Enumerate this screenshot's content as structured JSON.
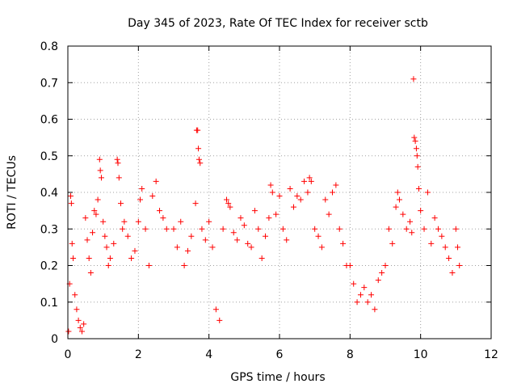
{
  "chart_data": {
    "type": "scatter",
    "title": "Day 345 of 2023, Rate Of TEC Index for receiver sctb",
    "xlabel": "GPS time / hours",
    "ylabel": "ROTI / TECUs",
    "xlim": [
      0,
      12
    ],
    "ylim": [
      0,
      0.8
    ],
    "xticks": [
      0,
      2,
      4,
      6,
      8,
      10,
      12
    ],
    "yticks": [
      0,
      0.1,
      0.2,
      0.3,
      0.4,
      0.5,
      0.6,
      0.7,
      0.8
    ],
    "x_tick_labels": [
      "0",
      "2",
      "4",
      "6",
      "8",
      "10",
      "12"
    ],
    "y_tick_labels": [
      "0",
      "0.1",
      "0.2",
      "0.3",
      "0.4",
      "0.5",
      "0.6",
      "0.7",
      "0.8"
    ],
    "grid": true,
    "marker": "+",
    "series": [
      {
        "name": "ROTI",
        "color": "#ff0000",
        "points": [
          [
            0.02,
            0.02
          ],
          [
            0.05,
            0.15
          ],
          [
            0.08,
            0.39
          ],
          [
            0.1,
            0.37
          ],
          [
            0.12,
            0.26
          ],
          [
            0.15,
            0.22
          ],
          [
            0.2,
            0.12
          ],
          [
            0.25,
            0.08
          ],
          [
            0.3,
            0.05
          ],
          [
            0.35,
            0.03
          ],
          [
            0.4,
            0.02
          ],
          [
            0.45,
            0.04
          ],
          [
            0.5,
            0.33
          ],
          [
            0.55,
            0.27
          ],
          [
            0.6,
            0.22
          ],
          [
            0.65,
            0.18
          ],
          [
            0.7,
            0.29
          ],
          [
            0.75,
            0.35
          ],
          [
            0.8,
            0.34
          ],
          [
            0.85,
            0.38
          ],
          [
            0.9,
            0.49
          ],
          [
            0.92,
            0.46
          ],
          [
            0.95,
            0.44
          ],
          [
            1.0,
            0.32
          ],
          [
            1.05,
            0.28
          ],
          [
            1.1,
            0.25
          ],
          [
            1.15,
            0.2
          ],
          [
            1.2,
            0.22
          ],
          [
            1.3,
            0.26
          ],
          [
            1.4,
            0.49
          ],
          [
            1.42,
            0.48
          ],
          [
            1.45,
            0.44
          ],
          [
            1.5,
            0.37
          ],
          [
            1.55,
            0.3
          ],
          [
            1.6,
            0.32
          ],
          [
            1.7,
            0.28
          ],
          [
            1.8,
            0.22
          ],
          [
            1.9,
            0.24
          ],
          [
            2.0,
            0.32
          ],
          [
            2.05,
            0.38
          ],
          [
            2.1,
            0.41
          ],
          [
            2.2,
            0.3
          ],
          [
            2.3,
            0.2
          ],
          [
            2.4,
            0.39
          ],
          [
            2.5,
            0.43
          ],
          [
            2.6,
            0.35
          ],
          [
            2.7,
            0.33
          ],
          [
            2.8,
            0.3
          ],
          [
            3.0,
            0.3
          ],
          [
            3.1,
            0.25
          ],
          [
            3.2,
            0.32
          ],
          [
            3.3,
            0.2
          ],
          [
            3.4,
            0.24
          ],
          [
            3.5,
            0.28
          ],
          [
            3.62,
            0.37
          ],
          [
            3.65,
            0.57
          ],
          [
            3.68,
            0.57
          ],
          [
            3.7,
            0.52
          ],
          [
            3.72,
            0.49
          ],
          [
            3.75,
            0.48
          ],
          [
            3.8,
            0.3
          ],
          [
            3.9,
            0.27
          ],
          [
            4.0,
            0.32
          ],
          [
            4.1,
            0.25
          ],
          [
            4.2,
            0.08
          ],
          [
            4.3,
            0.05
          ],
          [
            4.4,
            0.3
          ],
          [
            4.5,
            0.38
          ],
          [
            4.55,
            0.37
          ],
          [
            4.6,
            0.36
          ],
          [
            4.7,
            0.29
          ],
          [
            4.8,
            0.27
          ],
          [
            4.9,
            0.33
          ],
          [
            5.0,
            0.31
          ],
          [
            5.1,
            0.26
          ],
          [
            5.2,
            0.25
          ],
          [
            5.3,
            0.35
          ],
          [
            5.4,
            0.3
          ],
          [
            5.5,
            0.22
          ],
          [
            5.6,
            0.28
          ],
          [
            5.7,
            0.33
          ],
          [
            5.75,
            0.42
          ],
          [
            5.8,
            0.4
          ],
          [
            5.9,
            0.34
          ],
          [
            6.0,
            0.39
          ],
          [
            6.1,
            0.3
          ],
          [
            6.2,
            0.27
          ],
          [
            6.3,
            0.41
          ],
          [
            6.4,
            0.36
          ],
          [
            6.5,
            0.39
          ],
          [
            6.6,
            0.38
          ],
          [
            6.7,
            0.43
          ],
          [
            6.8,
            0.4
          ],
          [
            6.85,
            0.44
          ],
          [
            6.9,
            0.43
          ],
          [
            7.0,
            0.3
          ],
          [
            7.1,
            0.28
          ],
          [
            7.2,
            0.25
          ],
          [
            7.3,
            0.38
          ],
          [
            7.4,
            0.34
          ],
          [
            7.5,
            0.4
          ],
          [
            7.6,
            0.42
          ],
          [
            7.7,
            0.3
          ],
          [
            7.8,
            0.26
          ],
          [
            7.9,
            0.2
          ],
          [
            8.0,
            0.2
          ],
          [
            8.1,
            0.15
          ],
          [
            8.2,
            0.1
          ],
          [
            8.3,
            0.12
          ],
          [
            8.4,
            0.14
          ],
          [
            8.5,
            0.1
          ],
          [
            8.6,
            0.12
          ],
          [
            8.7,
            0.08
          ],
          [
            8.8,
            0.16
          ],
          [
            8.9,
            0.18
          ],
          [
            9.0,
            0.2
          ],
          [
            9.1,
            0.3
          ],
          [
            9.2,
            0.26
          ],
          [
            9.3,
            0.36
          ],
          [
            9.35,
            0.4
          ],
          [
            9.4,
            0.38
          ],
          [
            9.5,
            0.34
          ],
          [
            9.6,
            0.3
          ],
          [
            9.7,
            0.32
          ],
          [
            9.75,
            0.29
          ],
          [
            9.8,
            0.71
          ],
          [
            9.82,
            0.55
          ],
          [
            9.85,
            0.54
          ],
          [
            9.88,
            0.52
          ],
          [
            9.9,
            0.5
          ],
          [
            9.92,
            0.47
          ],
          [
            9.95,
            0.41
          ],
          [
            10.0,
            0.35
          ],
          [
            10.1,
            0.3
          ],
          [
            10.2,
            0.4
          ],
          [
            10.3,
            0.26
          ],
          [
            10.4,
            0.33
          ],
          [
            10.5,
            0.3
          ],
          [
            10.6,
            0.28
          ],
          [
            10.7,
            0.25
          ],
          [
            10.8,
            0.22
          ],
          [
            10.9,
            0.18
          ],
          [
            11.0,
            0.3
          ],
          [
            11.05,
            0.25
          ],
          [
            11.1,
            0.2
          ]
        ]
      }
    ]
  }
}
